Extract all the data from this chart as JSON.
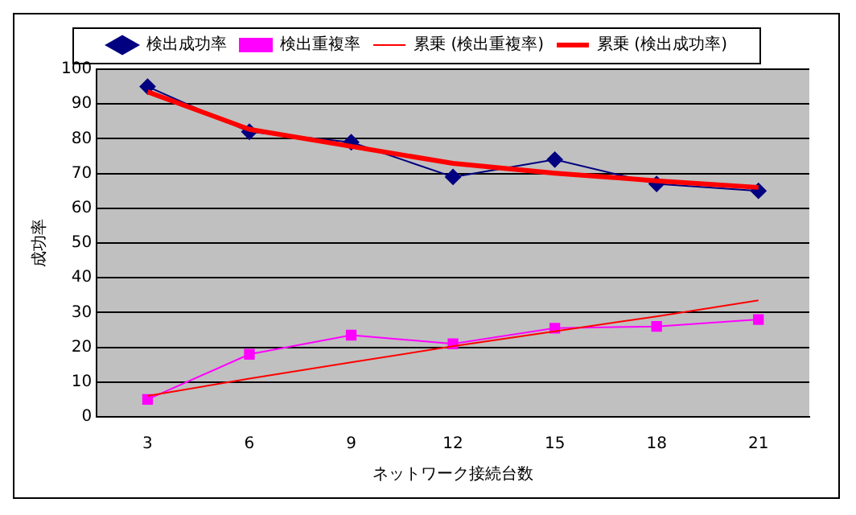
{
  "chart_data": {
    "type": "line",
    "xlabel": "ネットワーク接続台数",
    "ylabel": "成功率",
    "categories": [
      "3",
      "6",
      "9",
      "12",
      "15",
      "18",
      "21"
    ],
    "ylim": [
      0,
      100
    ],
    "yticks": [
      0,
      10,
      20,
      30,
      40,
      50,
      60,
      70,
      80,
      90,
      100
    ],
    "grid": "y",
    "legend": "top",
    "series": [
      {
        "name": "検出成功率",
        "color": "#000080",
        "marker": "diamond",
        "values": [
          95,
          82,
          79,
          69,
          74,
          67,
          65
        ]
      },
      {
        "name": "検出重複率",
        "color": "#ff00ff",
        "marker": "square",
        "values": [
          5,
          18,
          23.5,
          21,
          25.5,
          26,
          28
        ]
      },
      {
        "name": "累乗 (検出重複率)",
        "color": "#ff0000",
        "marker": "none",
        "values": [
          6,
          11,
          15.7,
          20.3,
          24.6,
          28.9,
          33.5
        ]
      },
      {
        "name": "累乗 (検出成功率)",
        "color": "#ff0000",
        "marker": "none",
        "values": [
          93.5,
          82.7,
          77.8,
          72.9,
          70.1,
          67.9,
          66
        ]
      }
    ]
  }
}
